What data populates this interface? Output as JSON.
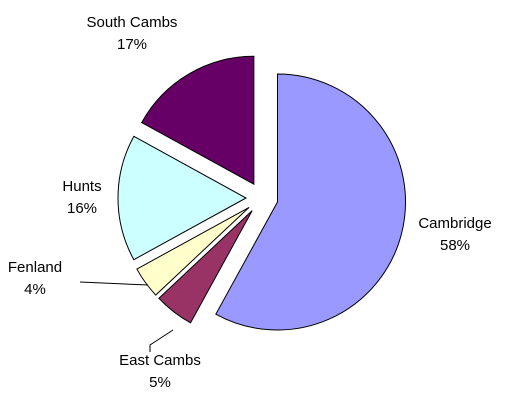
{
  "chart_data": {
    "type": "pie",
    "title": "",
    "slices": [
      {
        "name": "Cambridge",
        "pct_label": "58%",
        "value": 58,
        "color": "#9999ff",
        "exploded": true
      },
      {
        "name": "East Cambs",
        "pct_label": "5%",
        "value": 5,
        "color": "#993366",
        "exploded": true
      },
      {
        "name": "Fenland",
        "pct_label": "4%",
        "value": 4,
        "color": "#ffffcc",
        "exploded": true
      },
      {
        "name": "Hunts",
        "pct_label": "16%",
        "value": 16,
        "color": "#ccffff",
        "exploded": true
      },
      {
        "name": "South Cambs",
        "pct_label": "17%",
        "value": 17,
        "color": "#660066",
        "exploded": true
      }
    ],
    "start_angle_deg": 0,
    "direction": "clockwise",
    "legend": "none"
  }
}
